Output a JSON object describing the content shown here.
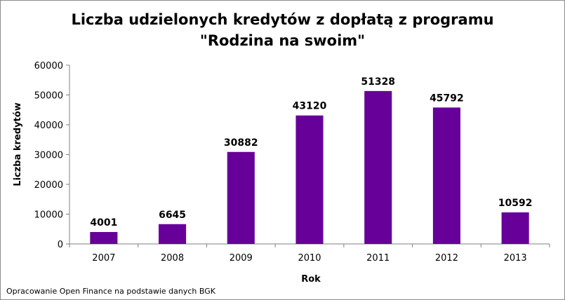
{
  "chart_data": {
    "type": "bar",
    "title_line1": "Liczba udzielonych kredytów z dopłatą z programu",
    "title_line2": "\"Rodzina na swoim\"",
    "xlabel": "Rok",
    "ylabel": "Liczba  kredytów",
    "categories": [
      "2007",
      "2008",
      "2009",
      "2010",
      "2011",
      "2012",
      "2013"
    ],
    "values": [
      4001,
      6645,
      30882,
      43120,
      51328,
      45792,
      10592
    ],
    "data_labels": [
      "4001",
      "6645",
      "30882",
      "43120",
      "51328",
      "45792",
      "10592"
    ],
    "ylim": [
      0,
      60000
    ],
    "yticks": [
      0,
      10000,
      20000,
      30000,
      40000,
      50000,
      60000
    ],
    "ytick_labels": [
      "0",
      "10000",
      "20000",
      "30000",
      "40000",
      "50000",
      "60000"
    ],
    "grid": false,
    "legend": "none",
    "bar_color": "#660099"
  },
  "footer": {
    "source": "Opracowanie Open Finance na podstawie danych BGK"
  }
}
